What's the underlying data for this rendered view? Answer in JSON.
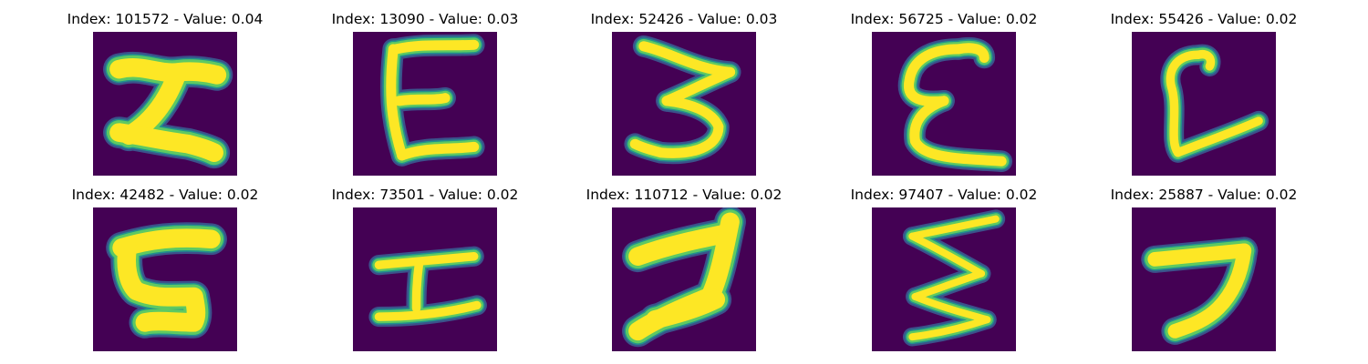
{
  "colors": {
    "background": "#440154",
    "edge_outer": "#3b528b",
    "edge_mid": "#21918c",
    "edge_inner": "#5ec962",
    "core": "#fde725"
  },
  "panels": [
    {
      "index": "101572",
      "value": "0.04",
      "label": "Index: 101572 - Value: 0.04",
      "glyph": "H-like"
    },
    {
      "index": "13090",
      "value": "0.03",
      "label": "Index: 13090 - Value: 0.03",
      "glyph": "E-like"
    },
    {
      "index": "52426",
      "value": "0.03",
      "label": "Index: 52426 - Value: 0.03",
      "glyph": "3-like"
    },
    {
      "index": "56725",
      "value": "0.02",
      "label": "Index: 56725 - Value: 0.02",
      "glyph": "E-like"
    },
    {
      "index": "55426",
      "value": "0.02",
      "label": "Index: 55426 - Value: 0.02",
      "glyph": "L-like"
    },
    {
      "index": "42482",
      "value": "0.02",
      "label": "Index: 42482 - Value: 0.02",
      "glyph": "C-like"
    },
    {
      "index": "73501",
      "value": "0.02",
      "label": "Index: 73501 - Value: 0.02",
      "glyph": "H-like"
    },
    {
      "index": "110712",
      "value": "0.02",
      "label": "Index: 110712 - Value: 0.02",
      "glyph": "2-like"
    },
    {
      "index": "97407",
      "value": "0.02",
      "label": "Index: 97407 - Value: 0.02",
      "glyph": "zigzag"
    },
    {
      "index": "25887",
      "value": "0.02",
      "label": "Index: 25887 - Value: 0.02",
      "glyph": "7-like"
    }
  ]
}
